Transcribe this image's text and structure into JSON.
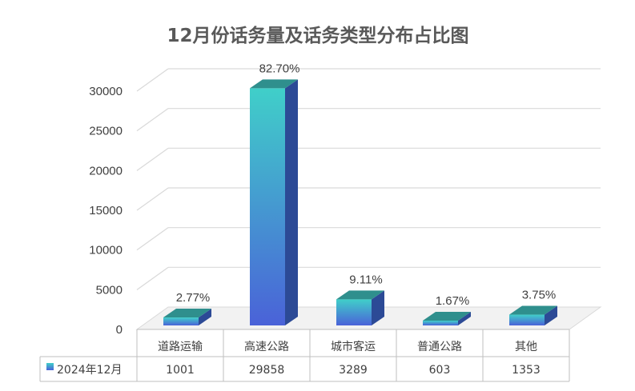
{
  "chart_data": {
    "type": "bar",
    "title": "12月份话务量及话务类型分布占比图",
    "categories": [
      "道路运输",
      "高速公路",
      "城市客运",
      "普通公路",
      "其他"
    ],
    "series": [
      {
        "name": "2024年12月",
        "values": [
          1001,
          29858,
          3289,
          603,
          1353
        ],
        "value_labels": [
          "1001",
          "29858",
          "3289",
          "603",
          "1353"
        ]
      }
    ],
    "data_labels": [
      "2.77%",
      "82.70%",
      "9.11%",
      "1.67%",
      "3.75%"
    ],
    "yticks": [
      "0",
      "5000",
      "10000",
      "15000",
      "20000",
      "25000",
      "30000"
    ],
    "ylim": [
      0,
      30000
    ],
    "grid": true,
    "legend": "data-table",
    "style": "3d-column",
    "colors": {
      "front_top": "#40cfc9",
      "front_bottom": "#4a62d8",
      "side": "#2c4a96",
      "top": "#2f8f8d",
      "grid": "#d9d9d9",
      "text": "#404040",
      "title": "#595959"
    }
  }
}
